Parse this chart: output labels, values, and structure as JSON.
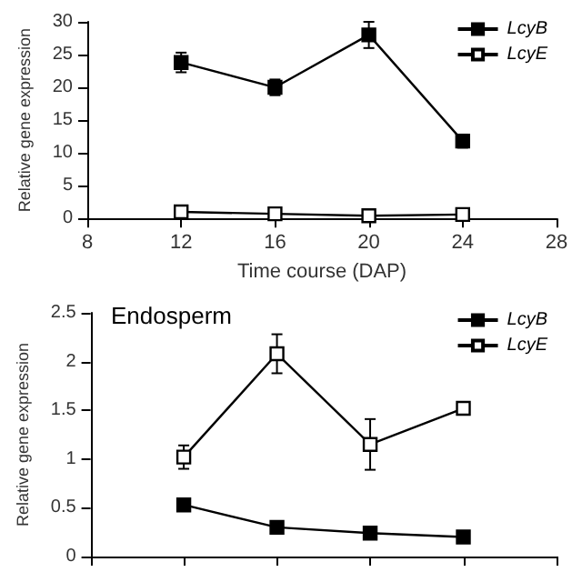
{
  "chart_data": [
    {
      "type": "line",
      "xlabel": "Time course (DAP)",
      "ylabel": "Relative gene expression",
      "x": [
        12,
        16,
        20,
        24
      ],
      "xlim": [
        8,
        28
      ],
      "xticks": [
        8,
        12,
        16,
        20,
        24,
        28
      ],
      "ylim": [
        0,
        30
      ],
      "yticks": [
        0,
        5,
        10,
        15,
        20,
        25,
        30
      ],
      "marker": "square",
      "legend": "top right",
      "grid": false,
      "series": [
        {
          "name": "LcyB",
          "color": "#000000",
          "values": [
            23.8,
            20,
            28,
            11.8
          ],
          "errors": [
            1.5,
            1.2,
            2,
            1
          ]
        },
        {
          "name": "LcyE",
          "color": "#000000",
          "values": [
            1.0,
            0.7,
            0.4,
            0.6
          ]
        }
      ]
    },
    {
      "type": "line",
      "title": "Endosperm",
      "ylabel": "Relative gene expression",
      "x": [
        12,
        16,
        20,
        24
      ],
      "xlim": [
        8,
        28
      ],
      "xticks": [
        8,
        12,
        16,
        20,
        24,
        28
      ],
      "ylim": [
        0,
        2.5
      ],
      "yticks": [
        0,
        0.5,
        1,
        1.5,
        2,
        2.5
      ],
      "marker": "square",
      "legend": "top right",
      "grid": false,
      "tick_labels": "y",
      "series": [
        {
          "name": "LcyB",
          "color": "#000000",
          "values": [
            0.53,
            0.3,
            0.24,
            0.2
          ],
          "errors": [
            null,
            0.03,
            null,
            null
          ]
        },
        {
          "name": "LcyE",
          "color": "#000000",
          "values": [
            1.02,
            2.08,
            1.15,
            1.52
          ],
          "errors": [
            0.12,
            0.2,
            0.26,
            0.03
          ]
        }
      ]
    }
  ]
}
